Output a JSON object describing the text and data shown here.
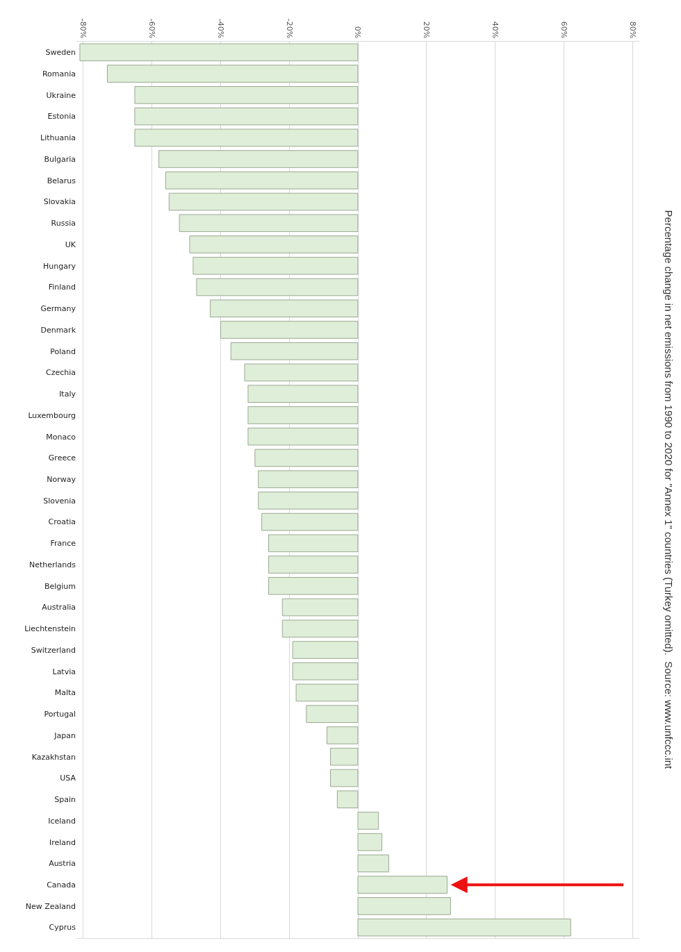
{
  "chart_data": {
    "type": "bar",
    "orientation": "horizontal",
    "title": "Percentage change in net emissions from 1990 to 2020 for \"Annex 1\" countries (Turkey omitted).  Source: www.unfccc.int",
    "categories": [
      "Sweden",
      "Romania",
      "Ukraine",
      "Estonia",
      "Lithuania",
      "Bulgaria",
      "Belarus",
      "Slovakia",
      "Russia",
      "UK",
      "Hungary",
      "Finland",
      "Germany",
      "Denmark",
      "Poland",
      "Czechia",
      "Italy",
      "Luxembourg",
      "Monaco",
      "Greece",
      "Norway",
      "Slovenia",
      "Croatia",
      "France",
      "Netherlands",
      "Belgium",
      "Australia",
      "Liechtenstein",
      "Switzerland",
      "Latvia",
      "Malta",
      "Portugal",
      "Japan",
      "Kazakhstan",
      "USA",
      "Spain",
      "Iceland",
      "Ireland",
      "Austria",
      "Canada",
      "New Zealand",
      "Cyprus"
    ],
    "values": [
      -81,
      -73,
      -65,
      -65,
      -65,
      -58,
      -56,
      -55,
      -52,
      -49,
      -48,
      -47,
      -43,
      -40,
      -37,
      -33,
      -32,
      -32,
      -32,
      -30,
      -29,
      -29,
      -28,
      -26,
      -26,
      -26,
      -22,
      -22,
      -19,
      -19,
      -18,
      -15,
      -9,
      -8,
      -8,
      -6,
      6,
      7,
      9,
      26,
      27,
      62
    ],
    "color": "#dfeed8",
    "xlim": [
      -82,
      82
    ],
    "xticks": [
      {
        "value": -80,
        "label": "-80%"
      },
      {
        "value": -60,
        "label": "-60%"
      },
      {
        "value": -40,
        "label": "-40%"
      },
      {
        "value": -20,
        "label": "-20%"
      },
      {
        "value": 0,
        "label": "0%"
      },
      {
        "value": 20,
        "label": "20%"
      },
      {
        "value": 40,
        "label": "40%"
      },
      {
        "value": 60,
        "label": "60%"
      },
      {
        "value": 80,
        "label": "80%"
      }
    ],
    "grid": "x"
  }
}
